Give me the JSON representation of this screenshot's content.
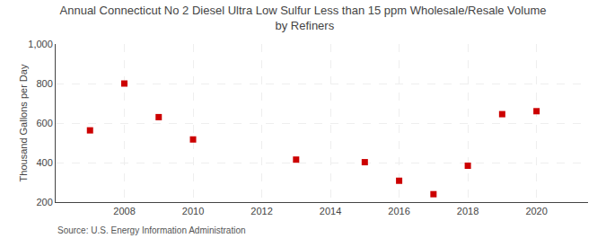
{
  "chart_data": {
    "type": "scatter",
    "title": "Annual Connecticut No 2 Diesel Ultra Low Sulfur Less than 15 ppm Wholesale/Resale Volume\n by Refiners",
    "y_label": "Thousand Gallons per Day",
    "annotations": [
      "Source: U.S. Energy Information Administration"
    ],
    "x": [
      2007,
      2008,
      2009,
      2010,
      2013,
      2015,
      2016,
      2017,
      2018,
      2019,
      2020
    ],
    "values": [
      563,
      800,
      630,
      517,
      415,
      402,
      308,
      240,
      384,
      645,
      660
    ],
    "color": "#cc0000",
    "marker": "square",
    "xlim": [
      2006.0,
      2021.5
    ],
    "xticks": [
      2008,
      2010,
      2012,
      2014,
      2016,
      2018,
      2020
    ],
    "ylim": [
      200,
      1000
    ],
    "yticks": [
      200,
      400,
      600,
      800,
      {
        "value": 1000,
        "label": "1,000"
      }
    ],
    "grid": true
  }
}
